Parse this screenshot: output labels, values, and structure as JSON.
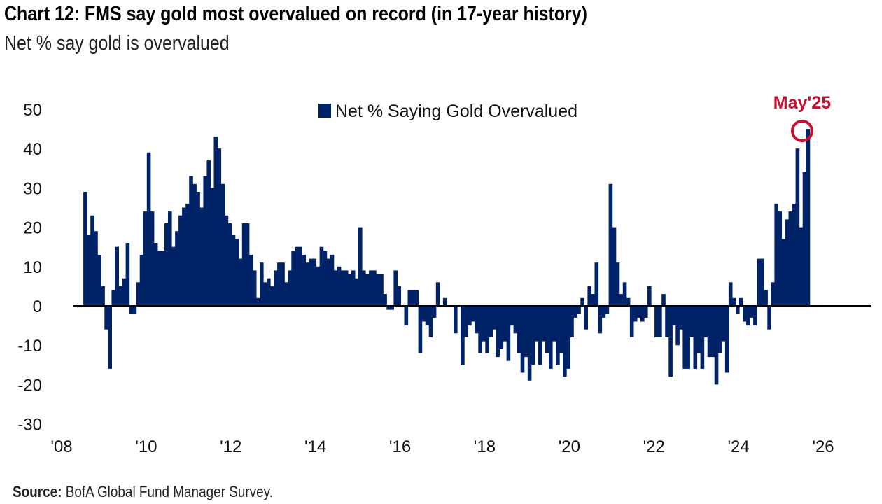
{
  "chart_data": {
    "type": "bar",
    "title": "Chart 12: FMS say gold most overvalued on record (in 17-year history)",
    "subtitle": "Net % say gold is overvalued",
    "source_label": "Source:",
    "source_text": "BofA Global Fund Manager Survey.",
    "legend": [
      "Net % Saying Gold Overvalued"
    ],
    "legend_placement": "top-center",
    "annotation": "May'25",
    "start": "2008-04",
    "end": "2025-05",
    "frequency": "monthly",
    "ylim": [
      -30,
      50
    ],
    "yticks": [
      50,
      40,
      30,
      20,
      10,
      0,
      -10,
      -20,
      -30
    ],
    "xticks": [
      "'08",
      "'10",
      "'12",
      "'14",
      "'16",
      "'18",
      "'20",
      "'22",
      "'24",
      "'26"
    ],
    "xlabel": "",
    "ylabel": "",
    "grid": false,
    "colors": {
      "bar": "#002266",
      "annotation": "#c8102e"
    },
    "series": [
      {
        "name": "Net % Saying Gold Overvalued",
        "values": [
          29,
          18,
          23,
          19,
          13,
          5,
          -6,
          -16,
          4,
          15,
          5,
          7,
          16,
          -2,
          -2,
          6,
          13,
          24,
          39,
          24,
          16,
          14,
          14,
          21,
          24,
          15,
          19,
          23,
          25,
          26,
          33,
          31,
          29,
          25,
          33,
          37,
          30,
          43,
          40,
          31,
          23,
          21,
          18,
          17,
          12,
          21,
          21,
          13,
          9,
          2,
          11,
          6,
          7,
          5,
          9,
          11,
          11,
          6,
          9,
          14,
          15,
          15,
          13,
          11,
          12,
          12,
          10,
          15,
          14,
          12,
          13,
          9,
          10,
          9,
          9,
          8,
          9,
          7,
          20,
          9,
          8,
          9,
          9,
          8,
          8,
          3,
          -1,
          -1,
          9,
          5,
          0,
          -5,
          4,
          4,
          4,
          -12,
          -4,
          -5,
          -8,
          -3,
          6,
          0,
          2,
          0,
          0,
          -7,
          0,
          -15,
          -8,
          -5,
          -4,
          -7,
          -12,
          -9,
          -12,
          -8,
          -6,
          -13,
          -11,
          -9,
          -14,
          -5,
          -7,
          -12,
          -17,
          -13,
          -19,
          -15,
          -9,
          -15,
          -9,
          -12,
          -16,
          -9,
          -15,
          -12,
          -18,
          -16,
          -8,
          -3,
          -2,
          2,
          -6,
          5,
          3,
          11,
          -7,
          -3,
          -2,
          31,
          20,
          11,
          3,
          6,
          2,
          -8,
          -4,
          -3,
          -4,
          -3,
          5,
          0,
          -8,
          -8,
          3,
          -8,
          -18,
          -5,
          -10,
          -6,
          -16,
          -16,
          -8,
          -16,
          -12,
          -16,
          -8,
          -13,
          -13,
          -20,
          -12,
          -9,
          -17,
          6,
          2,
          -2,
          2,
          -4,
          -5,
          -3,
          -5,
          12,
          12,
          4,
          -6,
          6,
          26,
          24,
          17,
          22,
          24,
          26,
          40,
          20,
          34,
          45
        ]
      }
    ]
  }
}
